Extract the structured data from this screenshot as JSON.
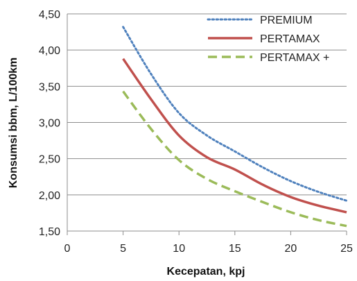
{
  "chart_data": {
    "type": "line",
    "title": "",
    "xlabel": "Kecepatan, kpj",
    "ylabel": "Konsumsi bbm, L/100km",
    "xlim": [
      0,
      25
    ],
    "ylim": [
      1.5,
      4.5
    ],
    "x_ticks": [
      "0",
      "5",
      "10",
      "15",
      "20",
      "25"
    ],
    "y_ticks": [
      "1,50",
      "2,00",
      "2,50",
      "3,00",
      "3,50",
      "4,00",
      "4,50"
    ],
    "grid": "horizontal",
    "legend_position": "top-right",
    "series": [
      {
        "name": "PREMIUM",
        "color": "#4f81bd",
        "style": "dotted",
        "x": [
          5,
          7.5,
          10,
          12.5,
          15,
          17.5,
          20,
          22.5,
          25
        ],
        "y": [
          4.32,
          3.67,
          3.13,
          2.82,
          2.6,
          2.38,
          2.19,
          2.04,
          1.92
        ]
      },
      {
        "name": "PERTAMAX",
        "color": "#c0504d",
        "style": "solid",
        "x": [
          5,
          7.5,
          10,
          12.5,
          15,
          17.5,
          20,
          22.5,
          25
        ],
        "y": [
          3.88,
          3.32,
          2.82,
          2.52,
          2.35,
          2.14,
          1.97,
          1.85,
          1.76
        ]
      },
      {
        "name": "PERTAMAX +",
        "color": "#9bbb59",
        "style": "dashed",
        "x": [
          5,
          7.5,
          10,
          12.5,
          15,
          17.5,
          20,
          22.5,
          25
        ],
        "y": [
          3.43,
          2.91,
          2.48,
          2.22,
          2.05,
          1.9,
          1.76,
          1.65,
          1.57
        ]
      }
    ]
  }
}
